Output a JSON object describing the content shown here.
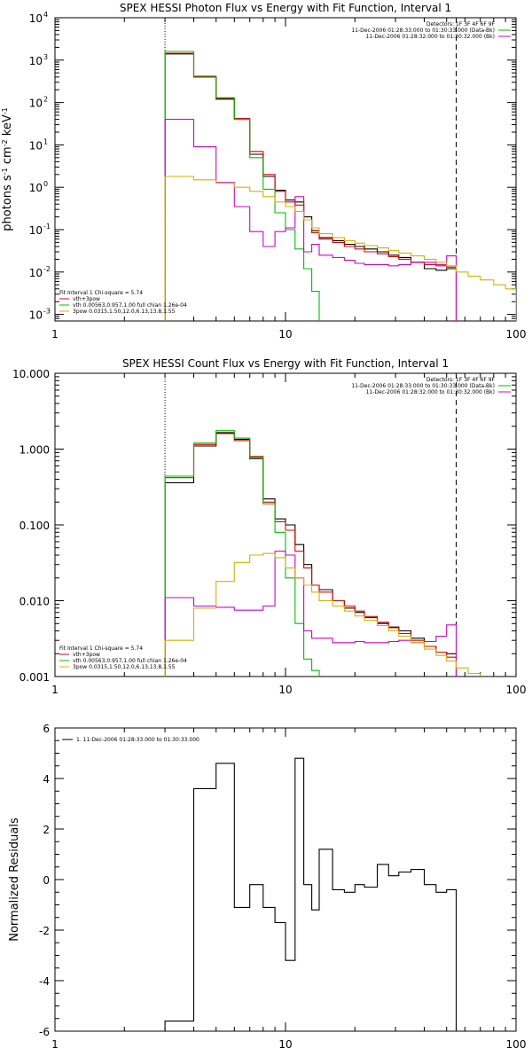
{
  "chart_data": [
    {
      "type": "line",
      "title": "SPEX HESSI Photon Flux vs Energy with Fit Function, Interval 1",
      "ylabel_parts": [
        "photons s",
        "-1",
        " cm",
        "-2",
        " keV",
        "-1"
      ],
      "xlabel": "",
      "xscale": "log",
      "yscale": "log",
      "xlim": [
        1,
        100
      ],
      "ylim": [
        0.0007,
        10000
      ],
      "x_tick_labels": [
        "1",
        "10",
        "100"
      ],
      "y_tick_labels": [
        "10",
        "10",
        "10",
        "10",
        "10",
        "10",
        "10",
        "10"
      ],
      "y_tick_exponents": [
        "-3",
        "-2",
        "-1",
        "0",
        "1",
        "2",
        "3",
        "4"
      ],
      "y_tick_values": [
        0.001,
        0.01,
        0.1,
        1,
        10,
        100,
        1000,
        10000
      ],
      "dotted_line_x": 3,
      "dashed_line_x": 55,
      "legend_top_right": [
        {
          "text": "Detectors: 1F 3F 4F 6F 9F",
          "color": ""
        },
        {
          "text": "11-Dec-2006 01:28:33.000 to 01:30:33.000 (Data-Bk)",
          "color": "#00c000"
        },
        {
          "text": "11-Dec-2006 01:28:32.000 to 01:30:32.000 (Bk)",
          "color": "#d000d0"
        }
      ],
      "legend_bottom_left": [
        {
          "text": "Fit Interval 1    Chi-square = 5.74",
          "color": ""
        },
        {
          "text": "vth+3pow",
          "color": "#e00000"
        },
        {
          "text": "vth 0.00563,0.957,1.00   full chian 1.26e-04",
          "color": "#00c000"
        },
        {
          "text": "3pow 0.0315,1.50,12.0,6.13,13.8,1.55",
          "color": "#d8b000"
        }
      ],
      "series": [
        {
          "color": "#000000",
          "edges": [
            3,
            4,
            5,
            6,
            7,
            8,
            9,
            10,
            11,
            12,
            13,
            14,
            16,
            18,
            20,
            22,
            25,
            28,
            31,
            35,
            40,
            45,
            50,
            55
          ],
          "values": [
            1400,
            400,
            120,
            40,
            6,
            1.8,
            0.85,
            0.5,
            0.45,
            0.2,
            0.095,
            0.065,
            0.055,
            0.045,
            0.04,
            0.035,
            0.03,
            0.025,
            0.022,
            0.017,
            0.012,
            0.011,
            0.012
          ]
        },
        {
          "color": "#e00000",
          "edges": [
            3,
            4,
            5,
            6,
            7,
            8,
            9,
            10,
            11,
            12,
            13,
            14,
            16,
            18,
            20,
            22,
            25,
            28,
            31,
            35,
            40,
            45,
            50,
            55
          ],
          "values": [
            1450,
            410,
            125,
            42,
            7,
            2,
            0.8,
            0.45,
            0.38,
            0.17,
            0.085,
            0.06,
            0.05,
            0.04,
            0.035,
            0.03,
            0.027,
            0.023,
            0.02,
            0.017,
            0.015,
            0.014,
            0.013
          ]
        },
        {
          "color": "#00c000",
          "edges": [
            3,
            4,
            5,
            6,
            7,
            8,
            9,
            10,
            11,
            12,
            13,
            14,
            16
          ],
          "values": [
            1600,
            420,
            130,
            40,
            5,
            0.9,
            0.25,
            0.1,
            0.035,
            0.012,
            0.0035,
            0.0005
          ]
        },
        {
          "color": "#d000d0",
          "edges": [
            3,
            4,
            5,
            6,
            7,
            8,
            9,
            10,
            11,
            12,
            13,
            14,
            16,
            18,
            20,
            22,
            25,
            28,
            31,
            35,
            40,
            45,
            50,
            55
          ],
          "values": [
            40,
            9,
            1.3,
            0.35,
            0.09,
            0.04,
            0.09,
            0.11,
            0.6,
            0.03,
            0.045,
            0.025,
            0.022,
            0.019,
            0.016,
            0.015,
            0.015,
            0.014,
            0.015,
            0.017,
            0.017,
            0.015,
            0.024
          ]
        },
        {
          "color": "#d8b000",
          "edges": [
            3,
            4,
            5,
            6,
            7,
            8,
            9,
            10,
            11,
            12,
            13,
            14,
            16,
            18,
            20,
            22,
            25,
            28,
            31,
            35,
            40,
            45,
            50,
            55,
            62,
            70,
            80,
            90,
            100
          ],
          "values": [
            1.8,
            1.5,
            1.25,
            1.0,
            0.8,
            0.6,
            0.45,
            0.35,
            0.27,
            0.17,
            0.11,
            0.08,
            0.065,
            0.055,
            0.048,
            0.042,
            0.037,
            0.032,
            0.028,
            0.024,
            0.02,
            0.017,
            0.014,
            0.01,
            0.008,
            0.0065,
            0.005,
            0.004
          ]
        }
      ]
    },
    {
      "type": "line",
      "title": "SPEX HESSI Count Flux vs Energy with Fit Function, Interval 1",
      "xlabel": "",
      "xscale": "log",
      "yscale": "log",
      "xlim": [
        1,
        100
      ],
      "ylim": [
        0.001,
        10
      ],
      "x_tick_labels": [
        "1",
        "10",
        "100"
      ],
      "y_tick_labels": [
        "0.001",
        "0.010",
        "0.100",
        "1.000",
        "10.000"
      ],
      "y_tick_values": [
        0.001,
        0.01,
        0.1,
        1,
        10
      ],
      "dotted_line_x": 3,
      "dashed_line_x": 55,
      "legend_top_right": [
        {
          "text": "Detectors: 1F 3F 4F 6F 9F",
          "color": ""
        },
        {
          "text": "11-Dec-2006 01:28:33.000 to 01:30:33.000 (Data-Bk)",
          "color": "#00c000"
        },
        {
          "text": "11-Dec-2006 01:28:32.000 to 01:30:32.000 (Bk)",
          "color": "#d000d0"
        }
      ],
      "legend_bottom_left": [
        {
          "text": "Fit Interval 1    Chi-square = 5.74",
          "color": ""
        },
        {
          "text": "vth+3pow",
          "color": "#e00000"
        },
        {
          "text": "vth 0.00563,0.957,1.00   full chian 1.26e-04",
          "color": "#00c000"
        },
        {
          "text": "3pow 0.0315,1.50,12.0,6.13,13.8,1.55",
          "color": "#d8b000"
        }
      ],
      "series": [
        {
          "color": "#000000",
          "edges": [
            3,
            4,
            5,
            6,
            7,
            8,
            9,
            10,
            11,
            12,
            13,
            14,
            16,
            18,
            20,
            22,
            25,
            28,
            31,
            35,
            40,
            45,
            50,
            55
          ],
          "values": [
            0.36,
            1.1,
            1.65,
            1.35,
            0.75,
            0.22,
            0.12,
            0.1,
            0.055,
            0.03,
            0.016,
            0.014,
            0.01,
            0.008,
            0.007,
            0.006,
            0.005,
            0.0045,
            0.004,
            0.0032,
            0.0025,
            0.0021,
            0.002
          ]
        },
        {
          "color": "#e00000",
          "edges": [
            3,
            4,
            5,
            6,
            7,
            8,
            9,
            10,
            11,
            12,
            13,
            14,
            16,
            18,
            20,
            22,
            25,
            28,
            31,
            35,
            40,
            45,
            50,
            55
          ],
          "values": [
            0.42,
            1.15,
            1.6,
            1.3,
            0.8,
            0.2,
            0.11,
            0.085,
            0.045,
            0.027,
            0.016,
            0.013,
            0.01,
            0.0085,
            0.0073,
            0.0062,
            0.0052,
            0.0044,
            0.0037,
            0.003,
            0.0025,
            0.0021,
            0.0018
          ]
        },
        {
          "color": "#00c000",
          "edges": [
            3,
            4,
            5,
            6,
            7,
            8,
            9,
            10,
            11,
            12,
            13,
            14
          ],
          "values": [
            0.44,
            1.2,
            1.75,
            1.4,
            0.78,
            0.19,
            0.08,
            0.02,
            0.005,
            0.0017,
            0.0012
          ]
        },
        {
          "color": "#d000d0",
          "edges": [
            3,
            4,
            5,
            6,
            7,
            8,
            9,
            10,
            11,
            12,
            13,
            14,
            16,
            18,
            20,
            22,
            25,
            28,
            31,
            35,
            40,
            45,
            50,
            55
          ],
          "values": [
            0.011,
            0.0085,
            0.0082,
            0.0075,
            0.0075,
            0.0085,
            0.045,
            0.04,
            0.02,
            0.004,
            0.0032,
            0.0032,
            0.0028,
            0.0028,
            0.0029,
            0.0028,
            0.0028,
            0.0029,
            0.003,
            0.0028,
            0.0029,
            0.0034,
            0.0048
          ]
        },
        {
          "color": "#d8b000",
          "edges": [
            3,
            4,
            5,
            6,
            7,
            8,
            9,
            10,
            11,
            12,
            13,
            14,
            16,
            18,
            20,
            22,
            25,
            28,
            31,
            35,
            40,
            45,
            50,
            55,
            62,
            70,
            80,
            90
          ],
          "values": [
            0.003,
            0.008,
            0.018,
            0.032,
            0.04,
            0.042,
            0.037,
            0.027,
            0.02,
            0.016,
            0.013,
            0.01,
            0.0085,
            0.0073,
            0.0063,
            0.0055,
            0.0047,
            0.004,
            0.0034,
            0.0028,
            0.0023,
            0.0019,
            0.0016,
            0.0013,
            0.0011,
            0.0009,
            0.0008
          ]
        }
      ]
    },
    {
      "type": "line",
      "title": "",
      "ylabel": "Normalized Residuals",
      "xlabel": "",
      "xscale": "log",
      "yscale": "linear",
      "xlim": [
        1,
        100
      ],
      "ylim": [
        -6,
        6
      ],
      "x_tick_labels": [
        "1",
        "10",
        "100"
      ],
      "y_tick_labels": [
        "-6",
        "-4",
        "-2",
        "0",
        "2",
        "4",
        "6"
      ],
      "y_tick_values": [
        -6,
        -4,
        -2,
        0,
        2,
        4,
        6
      ],
      "legend_top_left": [
        {
          "text": "1. 11-Dec-2006 01:28:33.000 to 01:30:33.000",
          "color": "#000000"
        }
      ],
      "series": [
        {
          "color": "#000000",
          "edges": [
            3,
            4,
            5,
            6,
            7,
            8,
            9,
            10,
            11,
            12,
            13,
            14,
            16,
            18,
            20,
            22,
            25,
            28,
            31,
            35,
            40,
            45,
            50,
            55
          ],
          "values": [
            -5.6,
            3.6,
            4.6,
            -1.1,
            -0.2,
            -1.1,
            -1.7,
            -3.2,
            4.8,
            -0.2,
            -1.2,
            1.2,
            -0.4,
            -0.5,
            -0.2,
            -0.3,
            0.6,
            0.15,
            0.3,
            0.4,
            -0.2,
            -0.5,
            -0.4
          ]
        }
      ]
    }
  ]
}
